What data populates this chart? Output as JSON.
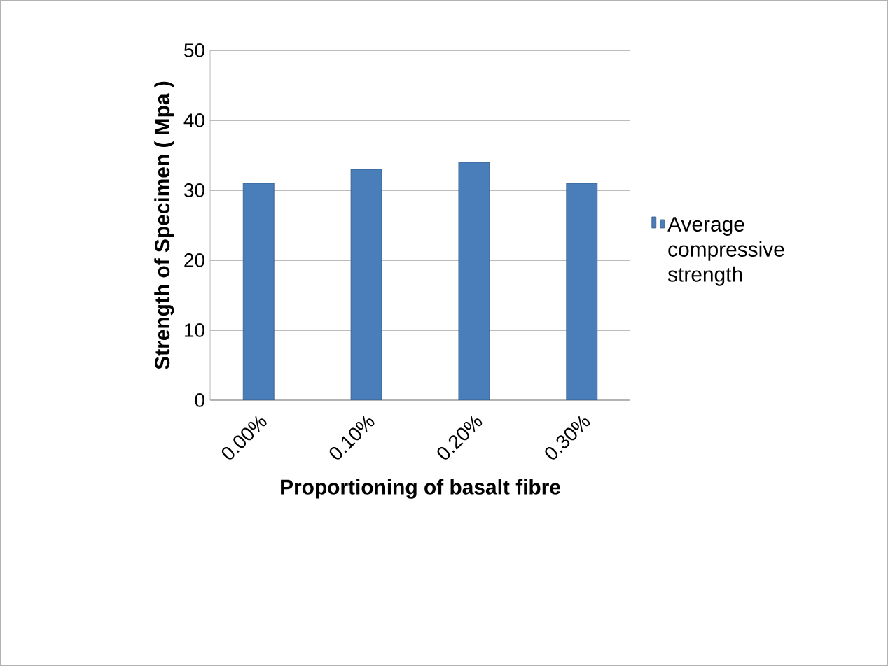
{
  "chart_data": {
    "type": "bar",
    "xlabel": "Proportioning of basalt fibre",
    "ylabel": "Strength of Specimen ( Mpa )",
    "categories": [
      "0.00%",
      "0.10%",
      "0.20%",
      "0.30%"
    ],
    "series": [
      {
        "name": "Average compressive strength",
        "color": "#4a7ebb",
        "values": [
          31,
          33,
          34,
          31
        ]
      }
    ],
    "ylim": [
      0,
      50
    ],
    "yticks": [
      0,
      10,
      20,
      30,
      40,
      50
    ],
    "grid": "y",
    "legend": "right"
  }
}
